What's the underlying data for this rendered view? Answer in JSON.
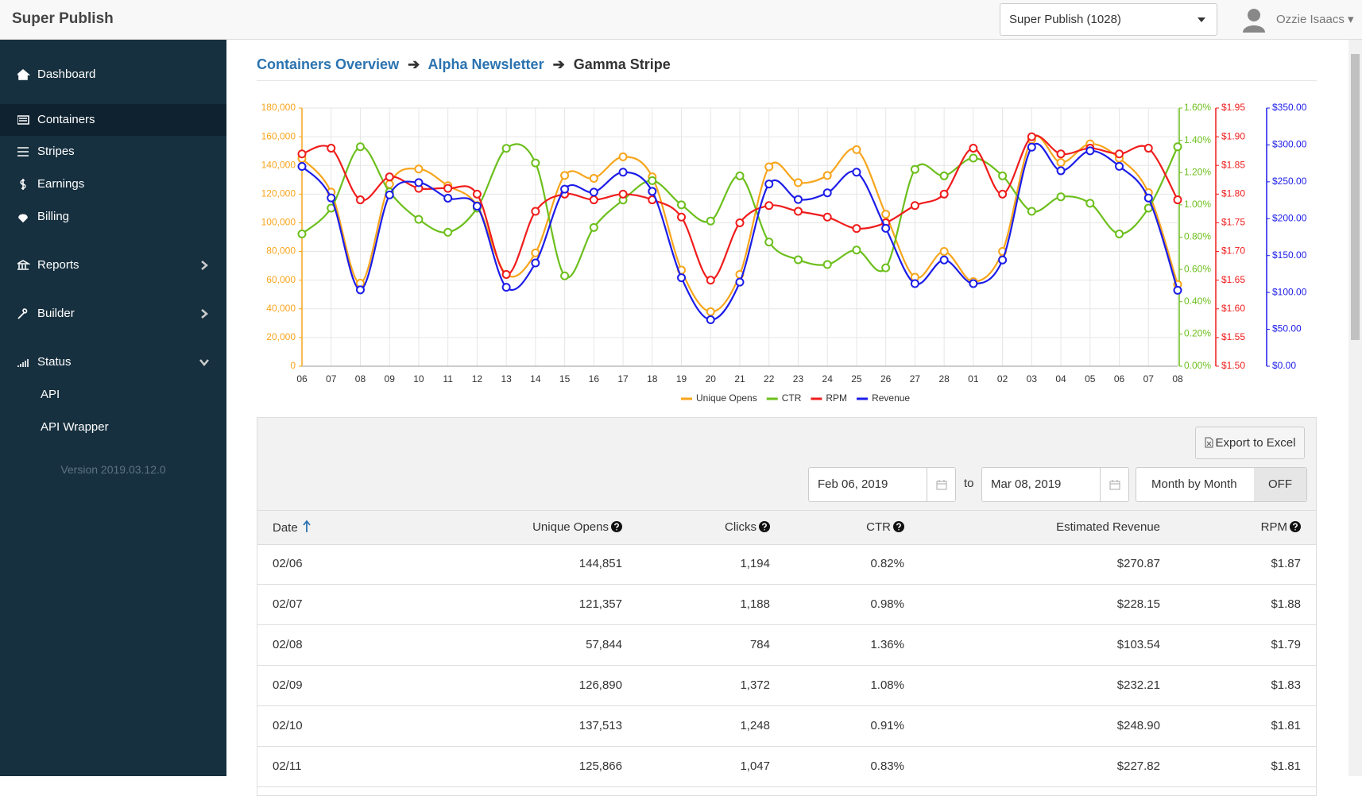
{
  "header": {
    "brand": "Super Publish",
    "account_select": "Super Publish (1028)",
    "user": "Ozzie Isaacs"
  },
  "sidebar": {
    "items": [
      "Dashboard",
      "Containers",
      "Stripes",
      "Earnings",
      "Billing",
      "Reports",
      "Builder",
      "Status"
    ],
    "subitems": [
      "API",
      "API Wrapper"
    ],
    "version": "Version 2019.03.12.0"
  },
  "breadcrumb": [
    "Containers Overview",
    "Alpha Newsletter",
    "Gamma Stripe"
  ],
  "chart_data": {
    "type": "line",
    "categories": [
      "06",
      "07",
      "08",
      "09",
      "10",
      "11",
      "12",
      "13",
      "14",
      "15",
      "16",
      "17",
      "18",
      "19",
      "20",
      "21",
      "22",
      "23",
      "24",
      "25",
      "26",
      "27",
      "28",
      "01",
      "02",
      "03",
      "04",
      "05",
      "06",
      "07",
      "08"
    ],
    "series": [
      {
        "name": "Unique Opens",
        "color": "#f7a51c",
        "axis": "y",
        "values": [
          144851,
          121357,
          57844,
          126890,
          137513,
          125866,
          112000,
          64000,
          79000,
          133000,
          131000,
          146000,
          132000,
          67000,
          38000,
          64000,
          139000,
          128000,
          133000,
          151000,
          106000,
          62000,
          80000,
          59000,
          80000,
          158000,
          142000,
          155000,
          145000,
          121000,
          57000
        ]
      },
      {
        "name": "CTR",
        "color": "#6cbf1c",
        "axis": "y2",
        "values": [
          0.82,
          0.98,
          1.36,
          1.08,
          0.91,
          0.83,
          0.98,
          1.35,
          1.26,
          0.56,
          0.86,
          1.03,
          1.15,
          1.0,
          0.9,
          1.18,
          0.77,
          0.66,
          0.63,
          0.72,
          0.61,
          1.22,
          1.18,
          1.29,
          1.18,
          0.96,
          1.05,
          1.01,
          0.82,
          0.98,
          1.36
        ]
      },
      {
        "name": "RPM",
        "color": "#f01c1c",
        "axis": "y3",
        "values": [
          1.87,
          1.88,
          1.79,
          1.83,
          1.81,
          1.81,
          1.8,
          1.66,
          1.77,
          1.8,
          1.79,
          1.8,
          1.79,
          1.76,
          1.65,
          1.75,
          1.78,
          1.77,
          1.76,
          1.74,
          1.75,
          1.78,
          1.8,
          1.88,
          1.8,
          1.9,
          1.87,
          1.88,
          1.87,
          1.88,
          1.79
        ]
      },
      {
        "name": "Revenue",
        "color": "#1c1ce8",
        "axis": "y4",
        "values": [
          270.87,
          228.15,
          103.54,
          232.21,
          248.9,
          227.82,
          217,
          107,
          140,
          240,
          236,
          263,
          237,
          120,
          63,
          114,
          247,
          226,
          235,
          263,
          187,
          112,
          144,
          112,
          144,
          297,
          265,
          292,
          271,
          228,
          103
        ]
      }
    ],
    "ylim": [
      0,
      180000
    ],
    "yticks": [
      0,
      {
        "value": 20000,
        "label": "20,000"
      },
      {
        "value": 40000,
        "label": "40,000"
      },
      {
        "value": 60000,
        "label": "60,000"
      },
      {
        "value": 80000,
        "label": "80,000"
      },
      {
        "value": 100000,
        "label": "100,000"
      },
      {
        "value": 120000,
        "label": "120,000"
      },
      {
        "value": 140000,
        "label": "140,000"
      },
      {
        "value": 160000,
        "label": "160,000"
      },
      {
        "value": 180000,
        "label": "180,000"
      }
    ],
    "y2lim": [
      0,
      1.6
    ],
    "y2ticks": [
      {
        "value": 0,
        "label": "0.00%"
      },
      {
        "value": 0.2,
        "label": "0.20%"
      },
      {
        "value": 0.4,
        "label": "0.40%"
      },
      {
        "value": 0.6,
        "label": "0.60%"
      },
      {
        "value": 0.8,
        "label": "0.80%"
      },
      {
        "value": 1.0,
        "label": "1.00%"
      },
      {
        "value": 1.2,
        "label": "1.20%"
      },
      {
        "value": 1.4,
        "label": "1.40%"
      },
      {
        "value": 1.6,
        "label": "1.60%"
      }
    ],
    "y3lim": [
      1.5,
      1.95
    ],
    "y3ticks": [
      {
        "value": 1.5,
        "label": "$1.50"
      },
      {
        "value": 1.55,
        "label": "$1.55"
      },
      {
        "value": 1.6,
        "label": "$1.60"
      },
      {
        "value": 1.65,
        "label": "$1.65"
      },
      {
        "value": 1.7,
        "label": "$1.70"
      },
      {
        "value": 1.75,
        "label": "$1.75"
      },
      {
        "value": 1.8,
        "label": "$1.80"
      },
      {
        "value": 1.85,
        "label": "$1.85"
      },
      {
        "value": 1.9,
        "label": "$1.90"
      },
      {
        "value": 1.95,
        "label": "$1.95"
      }
    ],
    "y4lim": [
      0,
      350
    ],
    "y4ticks": [
      {
        "value": 0,
        "label": "$0.00"
      },
      {
        "value": 50,
        "label": "$50.00"
      },
      {
        "value": 100,
        "label": "$100.00"
      },
      {
        "value": 150,
        "label": "$150.00"
      },
      {
        "value": 200,
        "label": "$200.00"
      },
      {
        "value": 250,
        "label": "$250.00"
      },
      {
        "value": 300,
        "label": "$300.00"
      },
      {
        "value": 350,
        "label": "$350.00"
      }
    ],
    "grid": true,
    "legend": "bottom"
  },
  "controls": {
    "export": "Export to Excel",
    "date_from": "Feb 06, 2019",
    "to": "to",
    "date_to": "Mar 08, 2019",
    "toggle_label": "Month by Month",
    "toggle_state": "OFF"
  },
  "table": {
    "columns": [
      "Date",
      "Unique Opens",
      "Clicks",
      "CTR",
      "Estimated Revenue",
      "RPM"
    ],
    "rows": [
      [
        "02/06",
        "144,851",
        "1,194",
        "0.82%",
        "$270.87",
        "$1.87"
      ],
      [
        "02/07",
        "121,357",
        "1,188",
        "0.98%",
        "$228.15",
        "$1.88"
      ],
      [
        "02/08",
        "57,844",
        "784",
        "1.36%",
        "$103.54",
        "$1.79"
      ],
      [
        "02/09",
        "126,890",
        "1,372",
        "1.08%",
        "$232.21",
        "$1.83"
      ],
      [
        "02/10",
        "137,513",
        "1,248",
        "0.91%",
        "$248.90",
        "$1.81"
      ],
      [
        "02/11",
        "125,866",
        "1,047",
        "0.83%",
        "$227.82",
        "$1.81"
      ]
    ]
  }
}
